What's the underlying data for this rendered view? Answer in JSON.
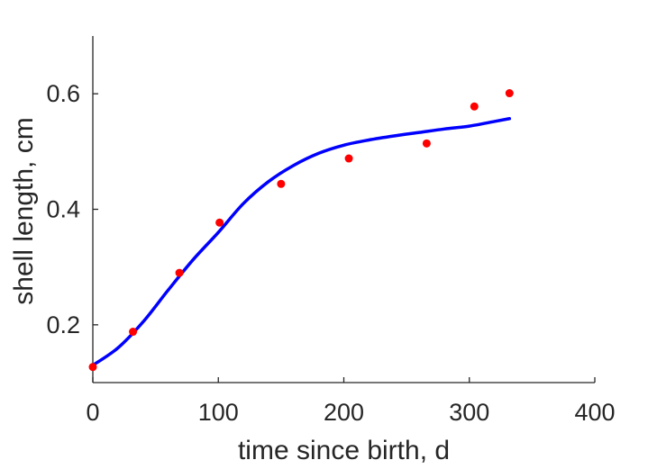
{
  "chart_data": {
    "type": "scatter",
    "title": "",
    "xlabel": "time since birth, d",
    "ylabel": "shell length, cm",
    "xlim": [
      0,
      400
    ],
    "ylim": [
      0.1,
      0.7
    ],
    "xticks": [
      0,
      100,
      200,
      300,
      400
    ],
    "yticks": [
      0.2,
      0.4,
      0.6
    ],
    "xtick_labels": [
      "0",
      "100",
      "200",
      "300",
      "400"
    ],
    "ytick_labels": [
      "0.2",
      "0.4",
      "0.6"
    ],
    "grid": false,
    "legend": "none",
    "series": [
      {
        "kind": "scatter",
        "color": "#ff0000",
        "x": [
          0,
          32,
          69,
          101,
          150,
          204,
          266,
          304,
          332
        ],
        "y": [
          0.127,
          0.188,
          0.29,
          0.377,
          0.444,
          0.488,
          0.514,
          0.578,
          0.601
        ]
      },
      {
        "kind": "line",
        "color": "#0000ff",
        "x": [
          0,
          20,
          40,
          60,
          80,
          100,
          120,
          140,
          160,
          180,
          200,
          220,
          240,
          260,
          280,
          300,
          320,
          332
        ],
        "y": [
          0.13,
          0.16,
          0.205,
          0.26,
          0.313,
          0.36,
          0.41,
          0.448,
          0.476,
          0.497,
          0.511,
          0.52,
          0.527,
          0.533,
          0.539,
          0.544,
          0.552,
          0.557
        ]
      }
    ]
  }
}
